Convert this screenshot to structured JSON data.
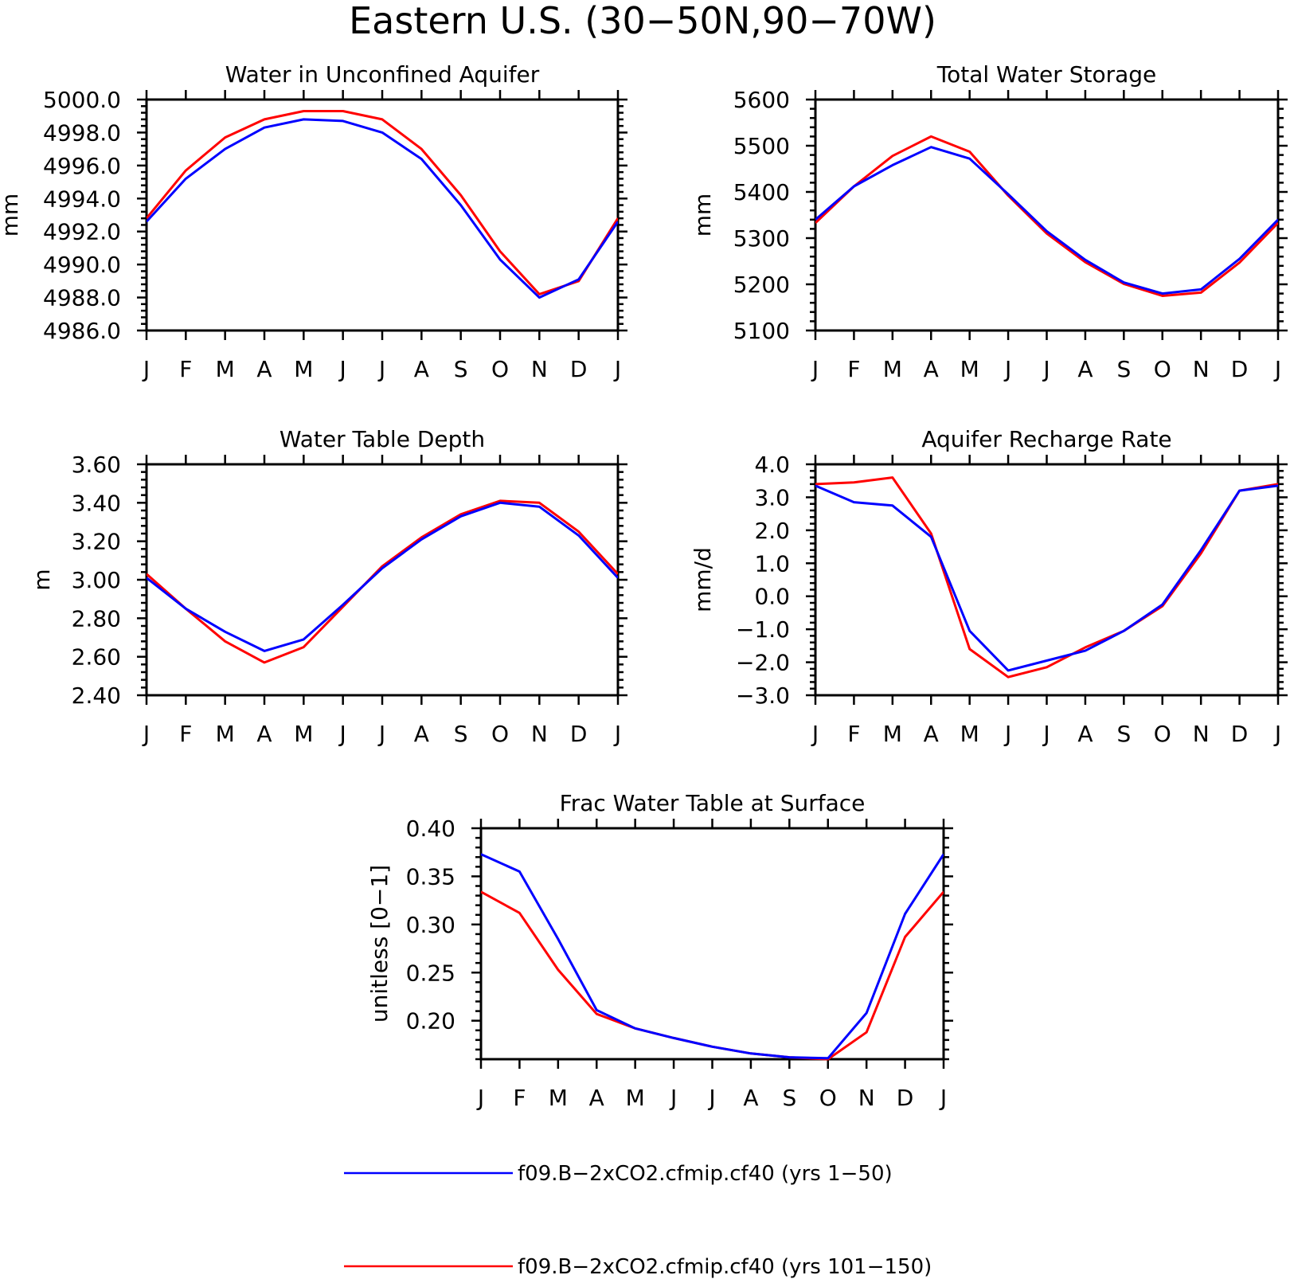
{
  "figure": {
    "title": "Eastern U.S. (30−50N,90−70W)"
  },
  "legend": {
    "entries": [
      {
        "label": "f09.B−2xCO2.cfmip.cf40 (yrs 1−50)",
        "color": "#0000ff"
      },
      {
        "label": "f09.B−2xCO2.cfmip.cf40 (yrs 101−150)",
        "color": "#ff0000"
      }
    ]
  },
  "chart_data": [
    {
      "type": "line",
      "title": "Water in Unconfined Aquifer",
      "xlabel": "",
      "ylabel": "mm",
      "categories": [
        "J",
        "F",
        "M",
        "A",
        "M",
        "J",
        "J",
        "A",
        "S",
        "O",
        "N",
        "D",
        "J"
      ],
      "ylim": [
        4986.0,
        5000.0
      ],
      "yticks": [
        "4986.0",
        "4988.0",
        "4990.0",
        "4992.0",
        "4994.0",
        "4996.0",
        "4998.0",
        "5000.0"
      ],
      "series": [
        {
          "name": "f09.B−2xCO2.cfmip.cf40 (yrs 1−50)",
          "color": "#0000ff",
          "values": [
            4992.6,
            4995.2,
            4997.0,
            4998.3,
            4998.8,
            4998.7,
            4998.0,
            4996.4,
            4993.6,
            4990.3,
            4988.0,
            4989.1,
            4992.6
          ]
        },
        {
          "name": "f09.B−2xCO2.cfmip.cf40 (yrs 101−150)",
          "color": "#ff0000",
          "values": [
            4992.8,
            4995.7,
            4997.7,
            4998.8,
            4999.3,
            4999.3,
            4998.8,
            4997.0,
            4994.2,
            4990.8,
            4988.2,
            4989.0,
            4992.8
          ]
        }
      ]
    },
    {
      "type": "line",
      "title": "Total Water Storage",
      "xlabel": "",
      "ylabel": "mm",
      "categories": [
        "J",
        "F",
        "M",
        "A",
        "M",
        "J",
        "J",
        "A",
        "S",
        "O",
        "N",
        "D",
        "J"
      ],
      "ylim": [
        5100,
        5600
      ],
      "yticks": [
        "5100",
        "5200",
        "5300",
        "5400",
        "5500",
        "5600"
      ],
      "series": [
        {
          "name": "f09.B−2xCO2.cfmip.cf40 (yrs 1−50)",
          "color": "#0000ff",
          "values": [
            5340,
            5412,
            5458,
            5497,
            5472,
            5395,
            5315,
            5253,
            5204,
            5180,
            5189,
            5255,
            5340
          ]
        },
        {
          "name": "f09.B−2xCO2.cfmip.cf40 (yrs 101−150)",
          "color": "#ff0000",
          "values": [
            5333,
            5412,
            5478,
            5520,
            5487,
            5392,
            5310,
            5248,
            5201,
            5175,
            5182,
            5247,
            5333
          ]
        }
      ]
    },
    {
      "type": "line",
      "title": "Water Table Depth",
      "xlabel": "",
      "ylabel": "m",
      "categories": [
        "J",
        "F",
        "M",
        "A",
        "M",
        "J",
        "J",
        "A",
        "S",
        "O",
        "N",
        "D",
        "J"
      ],
      "ylim": [
        2.4,
        3.6
      ],
      "yticks": [
        "2.40",
        "2.60",
        "2.80",
        "3.00",
        "3.20",
        "3.40",
        "3.60"
      ],
      "series": [
        {
          "name": "f09.B−2xCO2.cfmip.cf40 (yrs 1−50)",
          "color": "#0000ff",
          "values": [
            3.01,
            2.85,
            2.73,
            2.63,
            2.69,
            2.87,
            3.06,
            3.21,
            3.33,
            3.4,
            3.38,
            3.23,
            3.01
          ]
        },
        {
          "name": "f09.B−2xCO2.cfmip.cf40 (yrs 101−150)",
          "color": "#ff0000",
          "values": [
            3.03,
            2.85,
            2.68,
            2.57,
            2.65,
            2.86,
            3.07,
            3.22,
            3.34,
            3.41,
            3.4,
            3.25,
            3.03
          ]
        }
      ]
    },
    {
      "type": "line",
      "title": "Aquifer Recharge Rate",
      "xlabel": "",
      "ylabel": "mm/d",
      "categories": [
        "J",
        "F",
        "M",
        "A",
        "M",
        "J",
        "J",
        "A",
        "S",
        "O",
        "N",
        "D",
        "J"
      ],
      "ylim": [
        -3.0,
        4.0
      ],
      "yticks": [
        "−3.0",
        "−2.0",
        "−1.0",
        "0.0",
        "1.0",
        "2.0",
        "3.0",
        "4.0"
      ],
      "series": [
        {
          "name": "f09.B−2xCO2.cfmip.cf40 (yrs 1−50)",
          "color": "#0000ff",
          "values": [
            3.35,
            2.85,
            2.75,
            1.8,
            -1.05,
            -2.25,
            -1.95,
            -1.65,
            -1.05,
            -0.25,
            1.4,
            3.2,
            3.35
          ]
        },
        {
          "name": "f09.B−2xCO2.cfmip.cf40 (yrs 101−150)",
          "color": "#ff0000",
          "values": [
            3.4,
            3.45,
            3.6,
            1.9,
            -1.6,
            -2.45,
            -2.15,
            -1.55,
            -1.05,
            -0.3,
            1.3,
            3.2,
            3.4
          ]
        }
      ]
    },
    {
      "type": "line",
      "title": "Frac Water Table at Surface",
      "xlabel": "",
      "ylabel": "unitless [0−1]",
      "categories": [
        "J",
        "F",
        "M",
        "A",
        "M",
        "J",
        "J",
        "A",
        "S",
        "O",
        "N",
        "D",
        "J"
      ],
      "ylim": [
        0.16,
        0.4
      ],
      "yticks": [
        "0.20",
        "0.25",
        "0.30",
        "0.35",
        "0.40"
      ],
      "series": [
        {
          "name": "f09.B−2xCO2.cfmip.cf40 (yrs 1−50)",
          "color": "#0000ff",
          "values": [
            0.373,
            0.355,
            0.285,
            0.211,
            0.192,
            0.182,
            0.173,
            0.166,
            0.162,
            0.161,
            0.208,
            0.311,
            0.373
          ]
        },
        {
          "name": "f09.B−2xCO2.cfmip.cf40 (yrs 101−150)",
          "color": "#ff0000",
          "values": [
            0.334,
            0.312,
            0.253,
            0.207,
            0.192,
            0.182,
            0.173,
            0.166,
            0.162,
            0.16,
            0.188,
            0.287,
            0.334
          ]
        }
      ]
    }
  ]
}
